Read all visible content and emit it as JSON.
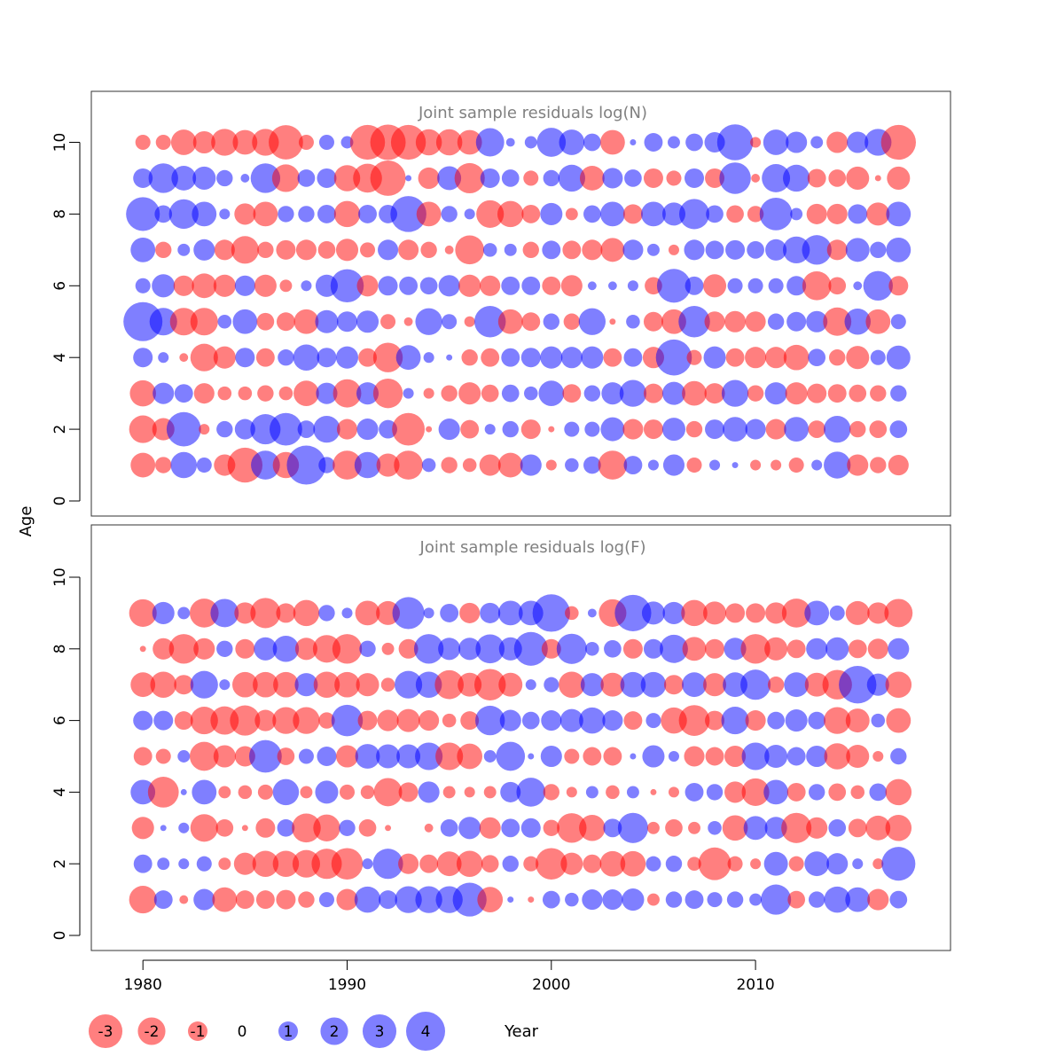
{
  "chart_data": {
    "type": "scatter",
    "subtype": "bubble",
    "ylabel": "Age",
    "xlabel": "Year",
    "xlim": [
      1977.5,
      2019.5
    ],
    "ylim": [
      -0.3,
      11.4
    ],
    "x_ticks": [
      1980,
      1990,
      2000,
      2010
    ],
    "y_ticks": [
      0,
      2,
      4,
      6,
      8,
      10
    ],
    "grid": false,
    "colors": {
      "positive": "#0000FF",
      "negative": "#FF0000",
      "alpha": 0.5
    },
    "legend": {
      "placement": "bottom",
      "entries": [
        {
          "label": "-3",
          "value": -3
        },
        {
          "label": "-2",
          "value": -2
        },
        {
          "label": "-1",
          "value": -1
        },
        {
          "label": "0",
          "value": 0
        },
        {
          "label": "1",
          "value": 1
        },
        {
          "label": "2",
          "value": 2
        },
        {
          "label": "3",
          "value": 3
        },
        {
          "label": "4",
          "value": 4
        }
      ]
    },
    "panels": [
      {
        "title": "Joint sample residuals log(N)",
        "years": [
          1980,
          1981,
          1982,
          1983,
          1984,
          1985,
          1986,
          1987,
          1988,
          1989,
          1990,
          1991,
          1992,
          1993,
          1994,
          1995,
          1996,
          1997,
          1998,
          1999,
          2000,
          2001,
          2002,
          2003,
          2004,
          2005,
          2006,
          2007,
          2008,
          2009,
          2010,
          2011,
          2012,
          2013,
          2014,
          2015,
          2016,
          2017
        ],
        "ages": [
          1,
          2,
          3,
          4,
          5,
          6,
          7,
          8,
          9,
          10
        ],
        "residuals": [
          [
            -1.6,
            -0.7,
            1.8,
            0.6,
            -1.2,
            -3.2,
            2.2,
            -1.8,
            4.0,
            0.7,
            -2.2,
            1.8,
            -1.4,
            -2.2,
            0.5,
            -0.7,
            -0.5,
            -1.2,
            -1.6,
            1.2,
            -0.3,
            0.5,
            0.8,
            -2.2,
            0.9,
            0.3,
            1.2,
            -0.6,
            0.3,
            0.1,
            -0.3,
            -0.3,
            -0.6,
            0.3,
            1.9,
            -1.2,
            -0.7,
            -1.1
          ],
          [
            -2.0,
            -1.3,
            3.1,
            -0.3,
            0.7,
            1.1,
            2.4,
            2.8,
            0.8,
            1.9,
            -1.1,
            1.2,
            0.9,
            -2.8,
            -0.1,
            1.2,
            -0.9,
            0.3,
            0.7,
            -1.0,
            -0.1,
            0.6,
            0.6,
            1.5,
            -1.1,
            -1.0,
            1.4,
            -0.7,
            1.0,
            1.6,
            1.1,
            -1.1,
            1.6,
            -0.8,
            1.9,
            -0.7,
            -0.8,
            0.8
          ],
          [
            -1.8,
            1.2,
            0.9,
            -1.1,
            -0.5,
            -0.5,
            -0.7,
            -0.5,
            -1.7,
            1.2,
            -2.1,
            1.3,
            -2.3,
            0.3,
            -0.3,
            -0.7,
            -1.3,
            -0.8,
            0.8,
            0.5,
            1.7,
            -0.9,
            0.7,
            1.3,
            1.9,
            -1.0,
            1.4,
            -1.6,
            -1.1,
            1.9,
            -0.7,
            1.3,
            -1.3,
            -1.0,
            -0.9,
            -0.8,
            -0.7,
            0.7
          ],
          [
            1.0,
            0.3,
            -0.2,
            -2.0,
            -1.3,
            1.0,
            -0.9,
            0.7,
            1.8,
            1.0,
            1.3,
            -0.9,
            -2.3,
            1.6,
            0.3,
            0.1,
            -0.7,
            -0.9,
            0.9,
            1.0,
            1.3,
            1.2,
            1.3,
            -0.9,
            0.9,
            -1.2,
            3.4,
            -0.6,
            1.3,
            -0.9,
            -1.2,
            -1.2,
            -1.7,
            0.8,
            -0.7,
            -1.4,
            0.6,
            1.5
          ],
          [
            4.0,
            2.0,
            -2.0,
            -2.0,
            0.5,
            1.6,
            -0.8,
            -0.9,
            -1.6,
            1.4,
            1.1,
            1.3,
            -0.6,
            -0.2,
            1.9,
            0.6,
            -0.3,
            2.6,
            -1.6,
            -0.9,
            0.7,
            -0.7,
            1.9,
            -0.1,
            0.5,
            -1.0,
            -1.6,
            2.6,
            -1.1,
            -1.2,
            -1.1,
            0.7,
            1.0,
            1.2,
            -2.1,
            1.8,
            -1.6,
            0.6
          ],
          [
            0.6,
            1.4,
            -1.1,
            -1.6,
            -1.3,
            1.1,
            -1.3,
            -0.4,
            0.3,
            1.3,
            2.9,
            -1.2,
            1.0,
            0.9,
            0.8,
            1.2,
            -1.3,
            -1.1,
            0.9,
            0.9,
            -0.9,
            -1.2,
            0.2,
            0.2,
            0.3,
            -0.8,
            3.0,
            0.9,
            -1.4,
            0.6,
            0.6,
            0.6,
            1.0,
            -2.2,
            -0.8,
            0.2,
            2.3,
            -1.0
          ],
          [
            1.6,
            -0.7,
            0.4,
            1.2,
            -1.1,
            -2.0,
            -0.7,
            -1.0,
            -1.1,
            -0.8,
            -1.3,
            -0.6,
            1.1,
            -1.1,
            -0.7,
            -0.2,
            -2.2,
            0.5,
            0.4,
            -0.7,
            0.9,
            -0.9,
            -1.1,
            -1.5,
            1.1,
            0.4,
            -0.3,
            1.1,
            0.9,
            1.0,
            0.8,
            1.2,
            1.9,
            2.3,
            -1.1,
            1.5,
            0.7,
            1.6
          ],
          [
            3.0,
            0.8,
            2.3,
            1.6,
            0.3,
            -1.2,
            -1.6,
            0.7,
            0.7,
            0.9,
            -1.8,
            0.9,
            0.9,
            3.4,
            -1.6,
            0.7,
            0.3,
            -2.0,
            -1.8,
            -0.9,
            1.3,
            -0.4,
            0.8,
            1.6,
            -1.0,
            1.6,
            1.4,
            2.4,
            0.8,
            -0.8,
            -0.7,
            2.8,
            0.4,
            -1.1,
            -1.1,
            1.0,
            -1.4,
            1.6
          ],
          [
            1.0,
            2.3,
            1.6,
            1.4,
            0.7,
            0.2,
            2.3,
            -2.0,
            0.8,
            1.0,
            -1.8,
            -2.2,
            -3.3,
            0.1,
            -1.2,
            1.5,
            -2.4,
            1.0,
            0.8,
            -0.6,
            0.7,
            1.9,
            -1.6,
            1.1,
            0.8,
            -1.0,
            -0.6,
            1.0,
            -1.0,
            2.6,
            -0.2,
            2.1,
            1.9,
            -0.9,
            -0.8,
            -1.4,
            -0.1,
            -1.4
          ],
          [
            -0.6,
            -0.6,
            -1.7,
            -1.3,
            -1.9,
            -1.6,
            -1.9,
            -3.1,
            -0.6,
            0.6,
            0.4,
            -3.2,
            -3.3,
            -3.2,
            -1.8,
            -1.8,
            -1.6,
            2.1,
            0.2,
            0.4,
            2.2,
            1.7,
            0.8,
            -1.6,
            0.1,
            0.9,
            0.4,
            0.8,
            1.1,
            3.4,
            -0.3,
            1.7,
            1.2,
            0.4,
            -1.2,
            1.2,
            1.9,
            -3.2
          ]
        ]
      },
      {
        "title": "Joint sample residuals log(F)",
        "years": [
          1980,
          1981,
          1982,
          1983,
          1984,
          1985,
          1986,
          1987,
          1988,
          1989,
          1990,
          1991,
          1992,
          1993,
          1994,
          1995,
          1996,
          1997,
          1998,
          1999,
          2000,
          2001,
          2002,
          2003,
          2004,
          2005,
          2006,
          2007,
          2008,
          2009,
          2010,
          2011,
          2012,
          2013,
          2014,
          2015,
          2016,
          2017
        ],
        "ages": [
          1,
          2,
          3,
          4,
          5,
          6,
          7,
          8,
          9
        ],
        "residuals": [
          [
            -2.0,
            0.9,
            -0.2,
            1.2,
            -1.6,
            -0.9,
            -0.9,
            -1.0,
            -0.7,
            0.6,
            -1.2,
            1.8,
            0.9,
            1.9,
            1.9,
            1.9,
            3.0,
            -1.7,
            0.1,
            -0.1,
            0.8,
            0.5,
            1.1,
            1.1,
            1.3,
            -0.4,
            0.7,
            0.9,
            0.6,
            0.7,
            0.4,
            2.4,
            -0.8,
            0.7,
            1.8,
            1.6,
            -1.2,
            0.8
          ],
          [
            0.9,
            0.4,
            0.3,
            0.6,
            -0.4,
            -1.3,
            -1.8,
            -1.8,
            -2.0,
            -2.4,
            -2.6,
            0.3,
            2.4,
            -1.1,
            -0.9,
            -1.6,
            -1.8,
            -0.8,
            0.7,
            -0.6,
            -2.6,
            -1.3,
            -0.9,
            -1.7,
            -1.7,
            0.6,
            0.7,
            -0.5,
            -2.8,
            -0.6,
            -0.3,
            1.5,
            -0.6,
            1.6,
            1.2,
            0.3,
            -0.3,
            3.0
          ],
          [
            -1.3,
            0.1,
            0.3,
            -2.0,
            -0.8,
            -0.1,
            -1.0,
            0.8,
            -2.2,
            -1.9,
            0.7,
            -0.8,
            -0.1,
            0.0,
            -0.2,
            0.8,
            1.3,
            -1.2,
            0.9,
            1.0,
            -0.7,
            -2.3,
            -1.8,
            0.9,
            2.4,
            -0.4,
            -0.8,
            -0.4,
            0.5,
            -1.7,
            1.5,
            1.3,
            -2.4,
            -1.2,
            0.8,
            -0.9,
            -1.6,
            -1.8
          ],
          [
            1.6,
            -2.5,
            0.1,
            1.6,
            -0.4,
            -0.5,
            -0.6,
            1.8,
            -0.4,
            1.4,
            -0.6,
            -0.5,
            -2.1,
            -1.0,
            1.2,
            -0.4,
            -0.3,
            -0.4,
            1.1,
            2.2,
            -0.7,
            -0.3,
            0.4,
            -0.5,
            0.4,
            -0.1,
            -0.3,
            0.9,
            0.7,
            -1.2,
            -2.0,
            1.6,
            -0.9,
            0.7,
            -0.8,
            -0.5,
            0.8,
            -1.8
          ],
          [
            -0.9,
            -0.6,
            0.4,
            -2.2,
            -1.3,
            -1.1,
            2.8,
            -0.8,
            0.6,
            1.0,
            -1.3,
            1.6,
            1.5,
            1.5,
            2.0,
            -2.0,
            -1.7,
            0.4,
            2.2,
            0.1,
            1.2,
            -0.6,
            -0.9,
            -0.9,
            0.1,
            1.3,
            0.3,
            -1.1,
            -0.9,
            -1.2,
            2.0,
            1.4,
            0.9,
            1.2,
            -1.8,
            -1.4,
            -0.3,
            0.7
          ],
          [
            1.0,
            1.0,
            -0.9,
            -2.0,
            -2.1,
            -2.4,
            -1.2,
            -1.9,
            -1.9,
            -0.7,
            2.6,
            -1.0,
            -1.2,
            -1.4,
            -1.1,
            -0.5,
            -0.9,
            2.3,
            1.2,
            0.8,
            1.1,
            1.4,
            1.8,
            1.1,
            -0.9,
            0.6,
            -1.8,
            -2.5,
            -1.0,
            2.0,
            -1.1,
            0.8,
            1.3,
            0.8,
            -1.9,
            -1.5,
            0.5,
            -1.6
          ],
          [
            -1.6,
            -1.8,
            -1.0,
            2.0,
            0.3,
            -1.7,
            -1.7,
            -1.7,
            1.4,
            -1.8,
            -1.7,
            -1.4,
            -0.5,
            2.0,
            1.8,
            -2.2,
            -1.5,
            -2.6,
            -1.5,
            0.3,
            0.6,
            -1.8,
            1.4,
            -1.5,
            1.7,
            1.7,
            -1.0,
            1.6,
            -1.4,
            1.6,
            2.4,
            -0.7,
            1.6,
            -1.5,
            -2.3,
            3.7,
            1.3,
            -1.8
          ],
          [
            -0.1,
            -1.2,
            -2.3,
            -1.2,
            0.7,
            -1.0,
            1.4,
            1.8,
            -1.3,
            -2.0,
            -2.3,
            0.7,
            -0.4,
            -1.0,
            2.3,
            1.3,
            1.3,
            2.2,
            1.4,
            3.0,
            -1.0,
            2.4,
            0.5,
            0.8,
            -1.0,
            1.0,
            2.1,
            -1.5,
            -1.0,
            1.3,
            -2.3,
            -1.4,
            -0.9,
            1.2,
            1.4,
            -0.9,
            -1.1,
            1.2
          ],
          [
            -2.0,
            1.3,
            0.4,
            -2.2,
            2.1,
            -1.2,
            -2.4,
            -1.0,
            -1.8,
            0.7,
            0.3,
            -1.6,
            -1.5,
            2.7,
            0.3,
            0.9,
            -1.1,
            1.1,
            1.6,
            1.6,
            3.7,
            -0.5,
            0.2,
            -2.0,
            3.5,
            1.4,
            1.3,
            -1.8,
            -1.4,
            -1.0,
            -1.0,
            -1.2,
            -2.2,
            1.6,
            0.6,
            -1.5,
            -1.2,
            -2.1
          ]
        ]
      }
    ]
  }
}
